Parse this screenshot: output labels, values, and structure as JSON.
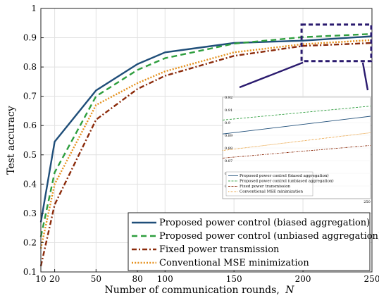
{
  "chart_data": {
    "type": "line",
    "xlabel": "Number of communication rounds,",
    "xlabel_symbol": "N",
    "ylabel": "Test accuracy",
    "xlim": [
      10,
      250
    ],
    "ylim": [
      0.1,
      1.0
    ],
    "x_ticks": [
      10,
      20,
      50,
      80,
      100,
      150,
      200,
      250
    ],
    "y_ticks": [
      0.1,
      0.2,
      0.3,
      0.4,
      0.5,
      0.6,
      0.7,
      0.8,
      0.9,
      1
    ],
    "y_tick_labels": [
      "0.1",
      "0.2",
      "0.3",
      "0.4",
      "0.5",
      "0.6",
      "0.7",
      "0.8",
      "0.9",
      "1"
    ],
    "grid": true,
    "legend_position": "bottom-right",
    "x": [
      10,
      20,
      50,
      80,
      100,
      150,
      200,
      250
    ],
    "series": [
      {
        "name": "Proposed power control (biased aggregation)",
        "values": [
          0.27,
          0.545,
          0.72,
          0.81,
          0.85,
          0.882,
          0.89,
          0.905
        ],
        "color": "#1f4e79",
        "dash": "solid"
      },
      {
        "name": "Proposed power control (unbiased aggregation)",
        "values": [
          0.22,
          0.44,
          0.7,
          0.79,
          0.83,
          0.88,
          0.902,
          0.913
        ],
        "color": "#2e9e3e",
        "dash": "dashed"
      },
      {
        "name": "Fixed power transmission",
        "values": [
          0.12,
          0.33,
          0.62,
          0.725,
          0.77,
          0.838,
          0.872,
          0.882
        ],
        "color": "#8b2a0a",
        "dash": "dashdot"
      },
      {
        "name": "Conventional MSE minimization",
        "values": [
          0.18,
          0.4,
          0.67,
          0.745,
          0.785,
          0.85,
          0.878,
          0.892
        ],
        "color": "#e5901c",
        "dash": "dotted"
      }
    ],
    "inset": {
      "xlim": [
        200,
        250
      ],
      "ylim": [
        0.84,
        0.92
      ],
      "x_ticks": [
        250
      ],
      "x_tick_labels": [
        "250"
      ],
      "y_ticks": [
        0.85,
        0.86,
        0.87,
        0.88,
        0.89,
        0.9,
        0.91,
        0.92
      ],
      "y_tick_labels": [
        "0.85",
        "0.86",
        "0.87",
        "0.88",
        "0.89",
        "0.9",
        "0.91",
        "0.92"
      ],
      "x": [
        200,
        250
      ],
      "series": [
        {
          "name": "Proposed power control (biased aggregation)",
          "values": [
            0.891,
            0.905
          ]
        },
        {
          "name": "Proposed power control (unbiased aggregation)",
          "values": [
            0.902,
            0.913
          ]
        },
        {
          "name": "Fixed power transmission",
          "values": [
            0.872,
            0.882
          ]
        },
        {
          "name": "Conventional MSE minimization",
          "values": [
            0.878,
            0.892
          ]
        }
      ]
    },
    "zoom_box": {
      "xlim": [
        200,
        250
      ],
      "ylim": [
        0.82,
        0.945
      ]
    }
  }
}
